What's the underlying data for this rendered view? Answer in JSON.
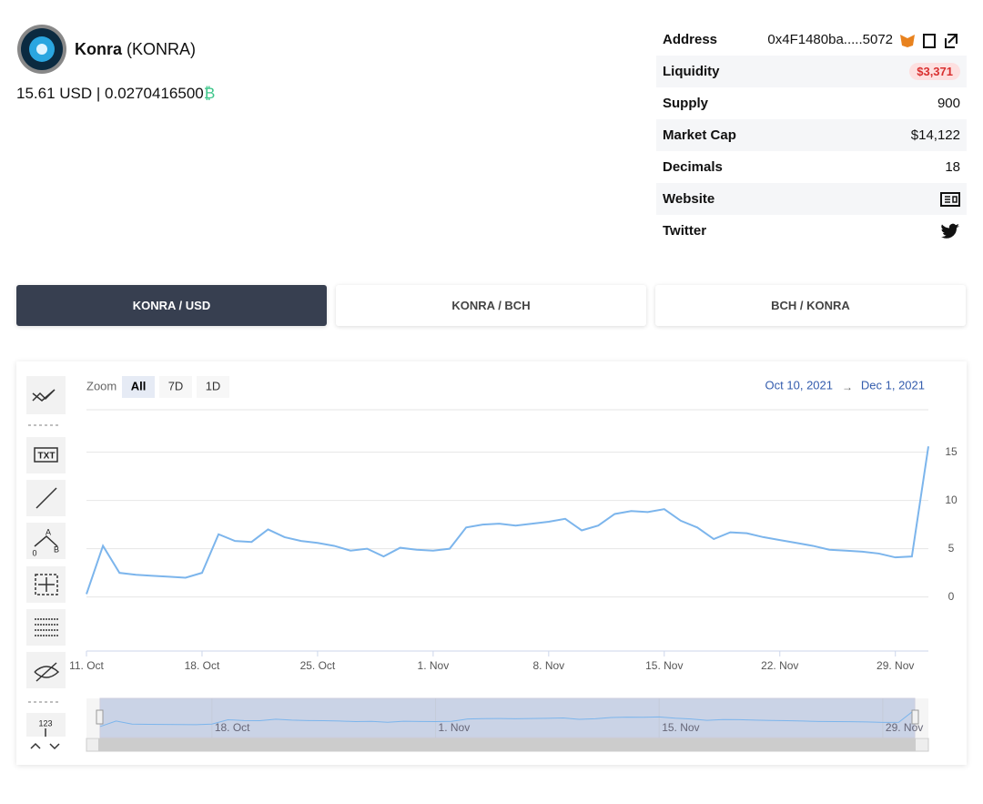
{
  "header": {
    "name": "Konra",
    "symbol": "(KONRA)",
    "price": "15.61 USD | 0.0270416500",
    "currency_symbol": "₿"
  },
  "info": {
    "rows": [
      [
        "Address",
        "0x4F1480ba.....5072"
      ],
      [
        "Liquidity",
        "$3,371"
      ],
      [
        "Supply",
        "900"
      ],
      [
        "Market Cap",
        "$14,122"
      ],
      [
        "Decimals",
        "18"
      ],
      [
        "Website"
      ],
      [
        "Twitter"
      ]
    ]
  },
  "tabs": [
    "KONRA / USD",
    "KONRA / BCH",
    "BCH / KONRA"
  ],
  "toolbar": {
    "text_tool": "TXT",
    "fib_labels": [
      "A",
      "0",
      "B"
    ],
    "counter": "123"
  },
  "zoom": {
    "label": "Zoom",
    "buttons": [
      "All",
      "7D",
      "1D"
    ],
    "from": "Oct 10, 2021",
    "arrow": "→",
    "to": "Dec 1, 2021"
  },
  "chart_data": {
    "type": "line",
    "grid": true,
    "x": [
      "2021-10-11",
      "2021-10-12",
      "2021-10-13",
      "2021-10-14",
      "2021-10-15",
      "2021-10-16",
      "2021-10-17",
      "2021-10-18",
      "2021-10-19",
      "2021-10-20",
      "2021-10-21",
      "2021-10-22",
      "2021-10-23",
      "2021-10-24",
      "2021-10-25",
      "2021-10-26",
      "2021-10-27",
      "2021-10-28",
      "2021-10-29",
      "2021-10-30",
      "2021-10-31",
      "2021-11-01",
      "2021-11-02",
      "2021-11-03",
      "2021-11-04",
      "2021-11-05",
      "2021-11-06",
      "2021-11-07",
      "2021-11-08",
      "2021-11-09",
      "2021-11-10",
      "2021-11-11",
      "2021-11-12",
      "2021-11-13",
      "2021-11-14",
      "2021-11-15",
      "2021-11-16",
      "2021-11-17",
      "2021-11-18",
      "2021-11-19",
      "2021-11-20",
      "2021-11-21",
      "2021-11-22",
      "2021-11-23",
      "2021-11-24",
      "2021-11-25",
      "2021-11-26",
      "2021-11-27",
      "2021-11-28",
      "2021-11-29",
      "2021-11-30",
      "2021-12-01"
    ],
    "series": [
      {
        "name": "KONRA / USD",
        "color": "#7cb5ec",
        "values": [
          0.3,
          5.3,
          2.5,
          2.3,
          2.2,
          2.1,
          2.0,
          2.5,
          6.5,
          5.8,
          5.7,
          7.0,
          6.2,
          5.8,
          5.6,
          5.3,
          4.8,
          5.0,
          4.2,
          5.1,
          4.9,
          4.8,
          5.0,
          7.2,
          7.5,
          7.6,
          7.4,
          7.6,
          7.8,
          8.1,
          6.9,
          7.4,
          8.6,
          8.9,
          8.8,
          9.1,
          7.9,
          7.2,
          6.0,
          6.7,
          6.6,
          6.2,
          5.9,
          5.6,
          5.3,
          4.9,
          4.8,
          4.7,
          4.5,
          4.1,
          4.2,
          15.6
        ]
      }
    ],
    "xlim": [
      "2021-10-11",
      "2021-12-01"
    ],
    "xticks": [
      {
        "value": "2021-10-11",
        "label": "11. Oct"
      },
      {
        "value": "2021-10-18",
        "label": "18. Oct"
      },
      {
        "value": "2021-10-25",
        "label": "25. Oct"
      },
      {
        "value": "2021-11-01",
        "label": "1. Nov"
      },
      {
        "value": "2021-11-08",
        "label": "8. Nov"
      },
      {
        "value": "2021-11-15",
        "label": "15. Nov"
      },
      {
        "value": "2021-11-22",
        "label": "22. Nov"
      },
      {
        "value": "2021-11-29",
        "label": "29. Nov"
      }
    ],
    "ylim": [
      -5.6,
      19.4
    ],
    "yticks": [
      0,
      5,
      10,
      15
    ]
  }
}
